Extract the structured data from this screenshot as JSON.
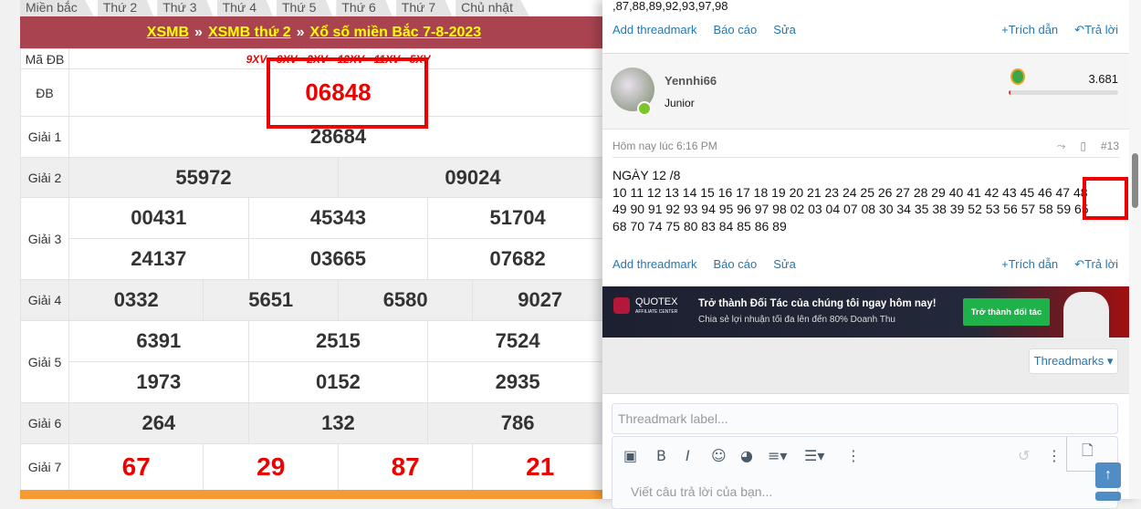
{
  "tabs": [
    "Miền bắc",
    "Thứ 2",
    "Thứ 3",
    "Thứ 4",
    "Thứ 5",
    "Thứ 6",
    "Thứ 7",
    "Chủ nhật"
  ],
  "breadcrumb": {
    "a": "XSMB",
    "sep": "»",
    "b": "XSMB thứ 2",
    "c": "Xổ số miền Bắc 7-8-2023"
  },
  "results": {
    "ma_db_label": "Mã ĐB",
    "ma_db": "9XV - 8XV - 2XV - 12XV - 11XV - 5XV",
    "db_label": "ĐB",
    "db": "06848",
    "g1_label": "Giải 1",
    "g1": [
      "28684"
    ],
    "g2_label": "Giải 2",
    "g2": [
      "55972",
      "09024"
    ],
    "g3_label": "Giải 3",
    "g3": [
      "00431",
      "45343",
      "51704",
      "24137",
      "03665",
      "07682"
    ],
    "g4_label": "Giải 4",
    "g4": [
      "0332",
      "5651",
      "6580",
      "9027"
    ],
    "g5_label": "Giải 5",
    "g5": [
      "6391",
      "2515",
      "7524",
      "1973",
      "0152",
      "2935"
    ],
    "g6_label": "Giải 6",
    "g6": [
      "264",
      "132",
      "786"
    ],
    "g7_label": "Giải 7",
    "g7": [
      "67",
      "29",
      "87",
      "21"
    ]
  },
  "prev_post": {
    "text_tail": ",87,88,89,92,93,97,98",
    "add_threadmark": "Add threadmark",
    "report": "Báo cáo",
    "edit": "Sửa",
    "quote": "Trích dẫn",
    "reply": "Trả lời"
  },
  "post": {
    "username": "Yennhi66",
    "user_title": "Junior",
    "points": "3.681",
    "time": "Hôm nay lúc 6:16 PM",
    "number": "#13",
    "lines": [
      "NGÀY 12 /8",
      "10 11 12 13 14 15 16 17 18 19 20 21 23 24 25 26 27 28 29 40 41 42 43 45 46 47 48",
      "49 90 91 92 93 94 95 96 97 98 02 03 04 07 08 30 34 35 38 39 52 53 56 57 58 59 65",
      "68 70 74 75 80 83 84 85 86 89"
    ],
    "add_threadmark": "Add threadmark",
    "report": "Báo cáo",
    "edit": "Sửa",
    "quote": "Trích dẫn",
    "reply": "Trả lời"
  },
  "ad": {
    "brand": "QUOTEX",
    "brand_sub": "AFFILIATE CENTER",
    "headline": "Trở thành Đối Tác của chúng tôi ngay hôm nay!",
    "sub": "Chia sẻ lợi nhuận tối đa lên đến 80% Doanh Thu",
    "button": "Trở thành đối tác"
  },
  "threadmarks_button": "Threadmarks ▾",
  "editor": {
    "threadmark_placeholder": "Threadmark label...",
    "reply_placeholder": "Viết câu trả lời của bạn..."
  },
  "colors": {
    "header": "#a94350",
    "link": "#2577b1",
    "highlight": "#e00000",
    "orange": "#f89a33"
  }
}
